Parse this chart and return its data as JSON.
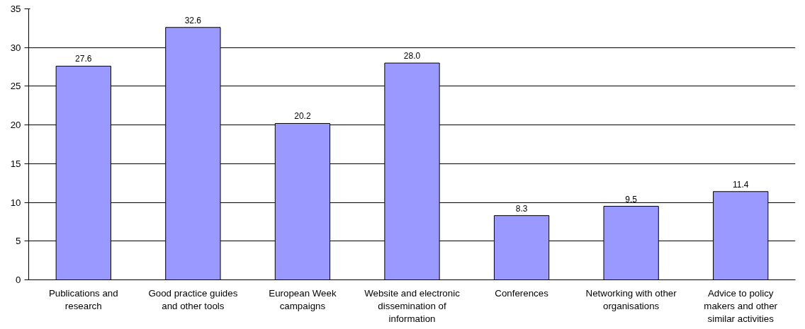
{
  "chart_data": {
    "type": "bar",
    "categories": [
      "Publications and research",
      "Good practice guides and other tools",
      "European Week campaigns",
      "Website and electronic dissemination of information",
      "Conferences",
      "Networking with other organisations",
      "Advice to policy makers and other similar activities"
    ],
    "values": [
      27.6,
      32.6,
      20.2,
      28.0,
      8.3,
      9.5,
      11.4
    ],
    "value_labels": [
      "27.6",
      "32.6",
      "20.2",
      "28.0",
      "8.3",
      "9.5",
      "11.4"
    ],
    "color": "#9999ff",
    "ylim": [
      0,
      35
    ],
    "yticks": [
      0,
      5,
      10,
      15,
      20,
      25,
      30,
      35
    ],
    "grid": "y"
  }
}
